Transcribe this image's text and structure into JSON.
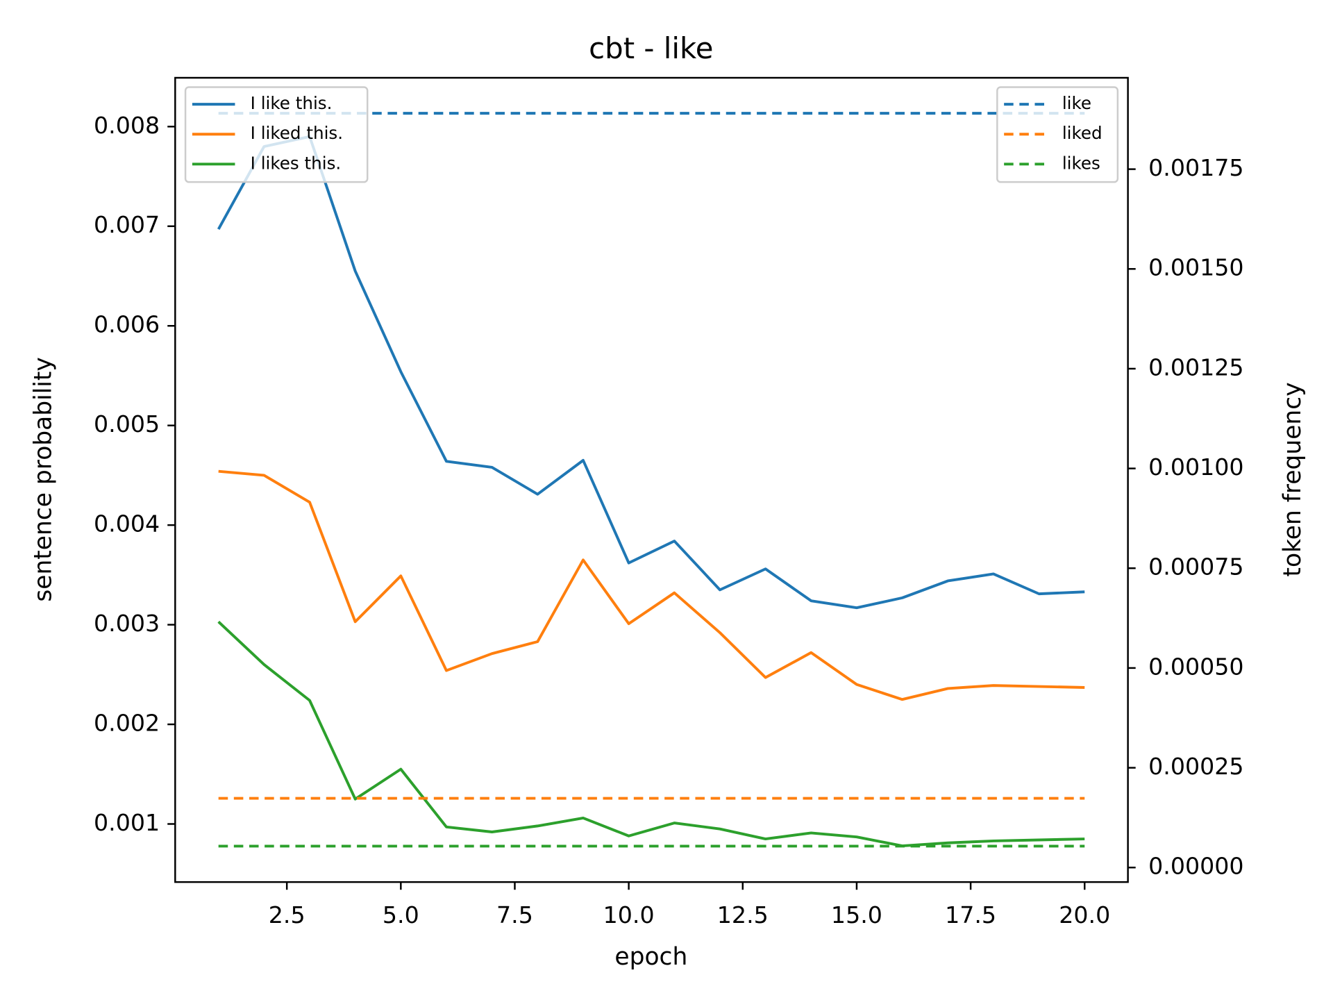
{
  "chart_data": {
    "type": "line",
    "title": "cbt - like",
    "xlabel": "epoch",
    "ylabel": "sentence probability",
    "y2label": "token frequency",
    "x": [
      1,
      2,
      3,
      4,
      5,
      6,
      7,
      8,
      9,
      10,
      11,
      12,
      13,
      14,
      15,
      16,
      17,
      18,
      19,
      20
    ],
    "series": [
      {
        "name": "I like this.",
        "color": "#1f77b4",
        "linestyle": "solid",
        "values": [
          0.00697,
          0.0078,
          0.0079,
          0.00655,
          0.00554,
          0.00464,
          0.00458,
          0.00431,
          0.00465,
          0.00362,
          0.00384,
          0.00335,
          0.00356,
          0.00324,
          0.00317,
          0.00327,
          0.00344,
          0.00351,
          0.00331,
          0.00333
        ]
      },
      {
        "name": "I liked this.",
        "color": "#ff7f0e",
        "linestyle": "solid",
        "values": [
          0.00454,
          0.0045,
          0.00423,
          0.00303,
          0.00349,
          0.00254,
          0.00271,
          0.00283,
          0.00365,
          0.00301,
          0.00332,
          0.00292,
          0.00247,
          0.00272,
          0.0024,
          0.00225,
          0.00236,
          0.00239,
          0.00238,
          0.00237
        ]
      },
      {
        "name": "I likes this.",
        "color": "#2ca02c",
        "linestyle": "solid",
        "values": [
          0.00303,
          0.0026,
          0.00224,
          0.00125,
          0.00155,
          0.00097,
          0.00092,
          0.00098,
          0.00106,
          0.00088,
          0.00101,
          0.00095,
          0.00085,
          0.00091,
          0.00087,
          0.00078,
          0.00081,
          0.00083,
          0.00084,
          0.00085
        ]
      },
      {
        "name": "like",
        "color": "#1f77b4",
        "linestyle": "dashed",
        "axis": "y2",
        "values": [
          0.00189,
          0.00189,
          0.00189,
          0.00189,
          0.00189,
          0.00189,
          0.00189,
          0.00189,
          0.00189,
          0.00189,
          0.00189,
          0.00189,
          0.00189,
          0.00189,
          0.00189,
          0.00189,
          0.00189,
          0.00189,
          0.00189,
          0.00189
        ]
      },
      {
        "name": "liked",
        "color": "#ff7f0e",
        "linestyle": "dashed",
        "axis": "y2",
        "values": [
          0.0001735,
          0.0001735,
          0.0001735,
          0.0001735,
          0.0001735,
          0.0001735,
          0.0001735,
          0.0001735,
          0.0001735,
          0.0001735,
          0.0001735,
          0.0001735,
          0.0001735,
          0.0001735,
          0.0001735,
          0.0001735,
          0.0001735,
          0.0001735,
          0.0001735,
          0.0001735
        ]
      },
      {
        "name": "likes",
        "color": "#2ca02c",
        "linestyle": "dashed",
        "axis": "y2",
        "values": [
          5.36e-05,
          5.36e-05,
          5.36e-05,
          5.36e-05,
          5.36e-05,
          5.36e-05,
          5.36e-05,
          5.36e-05,
          5.36e-05,
          5.36e-05,
          5.36e-05,
          5.36e-05,
          5.36e-05,
          5.36e-05,
          5.36e-05,
          5.36e-05,
          5.36e-05,
          5.36e-05,
          5.36e-05,
          5.36e-05
        ]
      }
    ],
    "xlim": [
      0.05,
      20.95
    ],
    "xticks": [
      2.5,
      {
        "value": 5,
        "label": "5.0"
      },
      7.5,
      {
        "value": 10,
        "label": "10.0"
      },
      12.5,
      {
        "value": 15,
        "label": "15.0"
      },
      17.5,
      {
        "value": 20,
        "label": "20.0"
      }
    ],
    "ylim": [
      0.000417,
      0.00849
    ],
    "yticks": [
      0.001,
      0.002,
      0.003,
      0.004,
      0.005,
      0.006,
      0.007,
      0.008
    ],
    "y2lim": [
      -3.64e-05,
      0.001979
    ],
    "y2ticks": [
      {
        "value": 0,
        "label": "0.00000"
      },
      0.00025,
      {
        "value": 0.0005,
        "label": "0.00050"
      },
      0.00075,
      {
        "value": 0.001,
        "label": "0.00100"
      },
      0.00125,
      {
        "value": 0.0015,
        "label": "0.00150"
      },
      0.00175
    ],
    "legend": "upper left",
    "legend2": "upper right",
    "grid": false
  }
}
